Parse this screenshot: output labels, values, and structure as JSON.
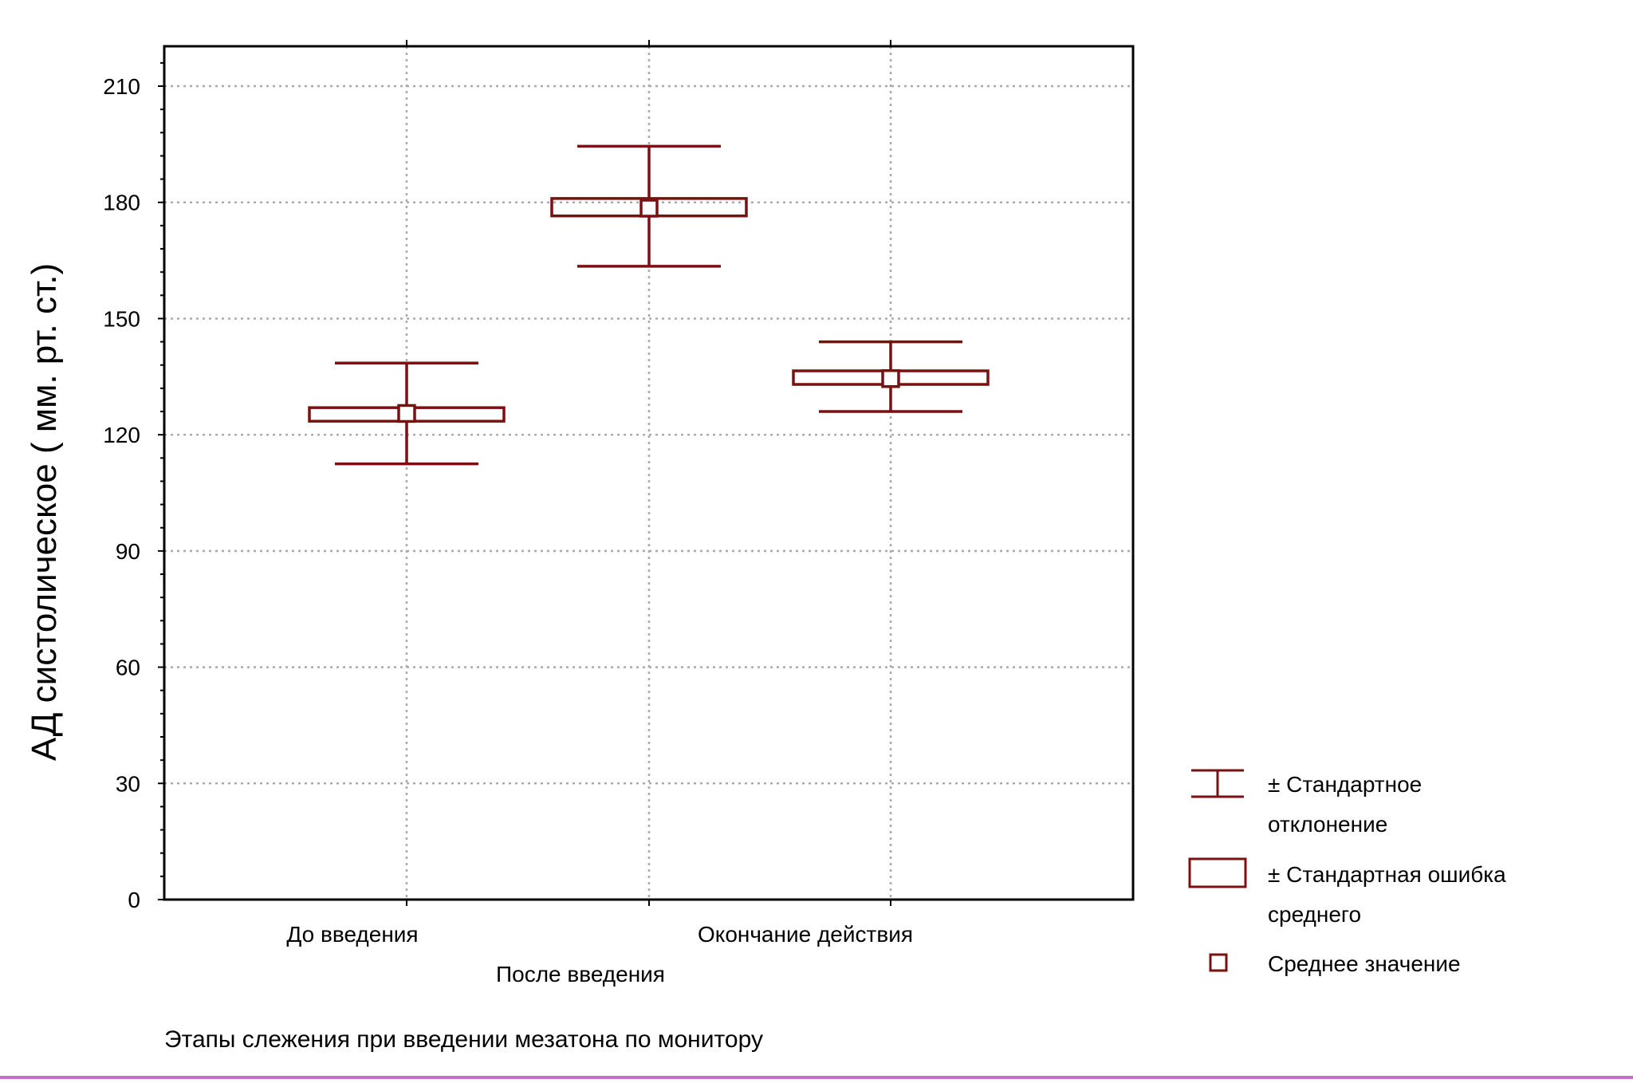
{
  "chart_data": {
    "type": "box",
    "title": "",
    "xlabel": "Этапы слежения при введении мезатона по монитору",
    "ylabel": "АД систолическое ( мм. рт. ст.)",
    "ylim": [
      0,
      220
    ],
    "yticks": [
      0,
      30,
      60,
      90,
      120,
      150,
      180,
      210
    ],
    "grid": true,
    "categories": [
      "До введения",
      "После введения",
      "Окончание действия"
    ],
    "series": [
      {
        "color": "#7b1010",
        "mean": [
          125.5,
          178.5,
          134.5
        ],
        "se_low": [
          123.5,
          176.5,
          133
        ],
        "se_high": [
          127,
          181,
          136.5
        ],
        "sd_low": [
          112.5,
          163.5,
          126
        ],
        "sd_high": [
          138.5,
          194.5,
          144
        ]
      }
    ],
    "legend": {
      "position": "right",
      "items": [
        {
          "marker": "whisker",
          "label_lines": [
            "± Стандартное",
            "отклонение"
          ]
        },
        {
          "marker": "box",
          "label_lines": [
            "± Стандартная ошибка",
            "среднего"
          ]
        },
        {
          "marker": "square",
          "label_lines": [
            "Среднее значение"
          ]
        }
      ]
    }
  }
}
